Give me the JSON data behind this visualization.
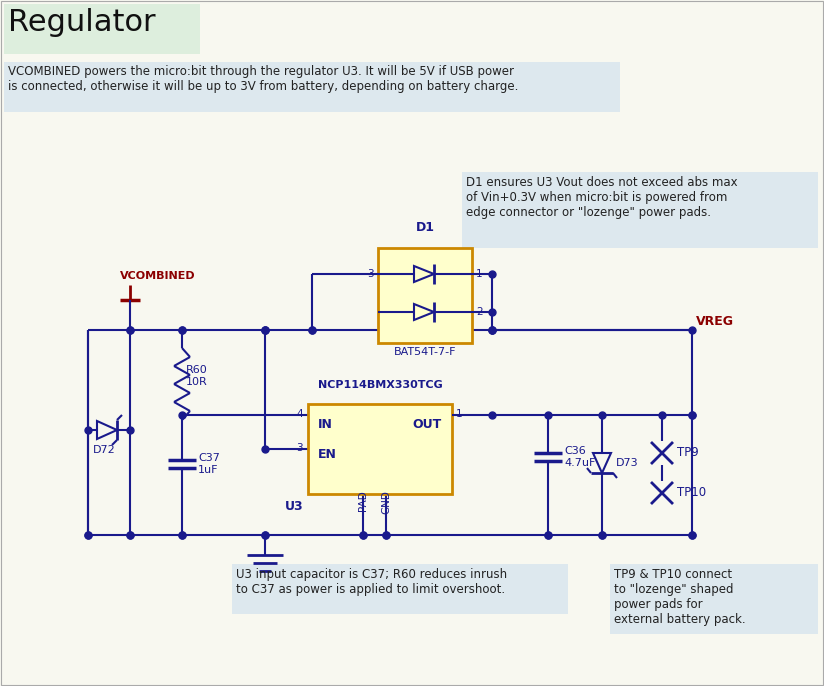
{
  "title": "Regulator",
  "title_bg": "#ddeedd",
  "bg_color": "#f8f8f0",
  "desc_text": "VCOMBINED powers the micro:bit through the regulator U3. It will be 5V if USB power\nis connected, otherwise it will be up to 3V from battery, depending on battery charge.",
  "desc_bg": "#dde8ee",
  "note1_text": "D1 ensures U3 Vout does not exceed abs max\nof Vin+0.3V when micro:bit is powered from\nedge connector or \"lozenge\" power pads.",
  "note1_bg": "#dde8ee",
  "note2_text": "U3 input capacitor is C37; R60 reduces inrush\nto C37 as power is applied to limit overshoot.",
  "note2_bg": "#dde8ee",
  "note3_text": "TP9 & TP10 connect\nto \"lozenge\" shaped\npower pads for\nexternal battery pack.",
  "note3_bg": "#dde8ee",
  "wire_color": "#1a1a8c",
  "red_color": "#8b0000",
  "ic_fill": "#ffffcc",
  "ic_border": "#cc8800",
  "text_dark": "#222222",
  "border_color": "#aaaaaa"
}
